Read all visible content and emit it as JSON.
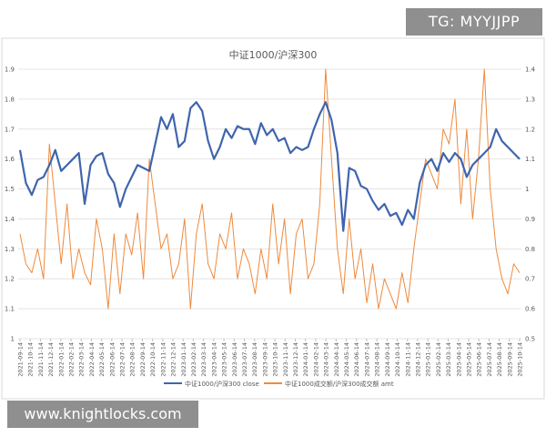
{
  "watermark_top": "TG: MYYJJPP",
  "watermark_bottom": "www.knightlocks.com",
  "colors": {
    "close": "#3f65ad",
    "amt": "#ed8a3d",
    "grid": "#e4e4e4",
    "text": "#595959",
    "border": "#d9d9d9"
  },
  "chart_data": {
    "type": "line",
    "title": "中证1000/沪深300",
    "legend_position": "bottom",
    "grid": true,
    "x_tick_labels": [
      "2021-09-14",
      "2021-10-14",
      "2021-11-14",
      "2021-12-14",
      "2022-01-14",
      "2022-02-14",
      "2022-03-14",
      "2022-04-14",
      "2022-05-14",
      "2022-06-14",
      "2022-07-14",
      "2022-08-14",
      "2022-09-14",
      "2022-10-14",
      "2022-11-14",
      "2022-12-14",
      "2023-01-14",
      "2023-02-14",
      "2023-03-14",
      "2023-04-14",
      "2023-05-14",
      "2023-06-14",
      "2023-07-14",
      "2023-08-14",
      "2023-09-14",
      "2023-10-14",
      "2023-11-14",
      "2023-12-14",
      "2024-01-14",
      "2024-02-14",
      "2024-03-14",
      "2024-04-14",
      "2024-05-14",
      "2024-06-14",
      "2024-07-14",
      "2024-08-14",
      "2024-09-14",
      "2024-10-14",
      "2024-11-14",
      "2024-12-14",
      "2025-01-14",
      "2025-02-14",
      "2025-03-14",
      "2025-04-14",
      "2025-05-14",
      "2025-06-14",
      "2025-07-14",
      "2025-08-14",
      "2025-09-14",
      "2025-10-14"
    ],
    "y_left": {
      "min": 1.0,
      "max": 1.9,
      "step": 0.1,
      "tick_labels": [
        "1",
        "1.1",
        "1.2",
        "1.3",
        "1.4",
        "1.5",
        "1.6",
        "1.7",
        "1.8",
        "1.9"
      ]
    },
    "y_right": {
      "min": 0.5,
      "max": 1.4,
      "step": 0.1,
      "tick_labels": [
        "0.5",
        "0.6",
        "0.7",
        "0.8",
        "0.9",
        "1",
        "1.1",
        "1.2",
        "1.3",
        "1.4"
      ]
    },
    "series": [
      {
        "name": "中证1000/沪深300 close",
        "axis": "left",
        "values": [
          1.63,
          1.52,
          1.48,
          1.53,
          1.54,
          1.58,
          1.63,
          1.56,
          1.58,
          1.6,
          1.62,
          1.45,
          1.58,
          1.61,
          1.62,
          1.55,
          1.52,
          1.44,
          1.5,
          1.54,
          1.58,
          1.57,
          1.56,
          1.65,
          1.74,
          1.7,
          1.75,
          1.64,
          1.66,
          1.77,
          1.79,
          1.76,
          1.66,
          1.6,
          1.64,
          1.7,
          1.67,
          1.71,
          1.7,
          1.7,
          1.65,
          1.72,
          1.68,
          1.7,
          1.66,
          1.67,
          1.62,
          1.64,
          1.63,
          1.64,
          1.7,
          1.75,
          1.79,
          1.73,
          1.62,
          1.36,
          1.57,
          1.56,
          1.51,
          1.5,
          1.46,
          1.43,
          1.45,
          1.41,
          1.42,
          1.38,
          1.43,
          1.4,
          1.52,
          1.58,
          1.6,
          1.56,
          1.62,
          1.59,
          1.62,
          1.6,
          1.54,
          1.58,
          1.6,
          1.62,
          1.64,
          1.7,
          1.66,
          1.64,
          1.62,
          1.6
        ]
      },
      {
        "name": "中证1000成交额/沪深300成交额 amt",
        "axis": "right",
        "values": [
          0.85,
          0.75,
          0.72,
          0.8,
          0.7,
          1.15,
          0.95,
          0.75,
          0.95,
          0.7,
          0.8,
          0.72,
          0.68,
          0.9,
          0.8,
          0.6,
          0.85,
          0.65,
          0.85,
          0.78,
          0.92,
          0.7,
          1.1,
          0.95,
          0.8,
          0.85,
          0.7,
          0.75,
          0.9,
          0.6,
          0.85,
          0.95,
          0.75,
          0.7,
          0.85,
          0.8,
          0.92,
          0.7,
          0.8,
          0.75,
          0.65,
          0.8,
          0.7,
          0.95,
          0.75,
          0.9,
          0.65,
          0.85,
          0.9,
          0.7,
          0.75,
          0.95,
          1.4,
          1.1,
          0.8,
          0.65,
          0.9,
          0.7,
          0.8,
          0.62,
          0.75,
          0.6,
          0.7,
          0.65,
          0.6,
          0.72,
          0.62,
          0.8,
          0.95,
          1.1,
          1.05,
          1.0,
          1.2,
          1.15,
          1.3,
          0.95,
          1.2,
          0.9,
          1.1,
          1.4,
          1.0,
          0.8,
          0.7,
          0.65,
          0.75,
          0.72
        ]
      }
    ]
  }
}
